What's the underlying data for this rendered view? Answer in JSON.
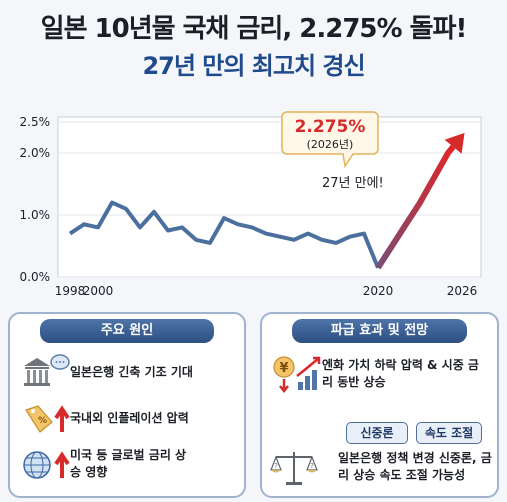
{
  "header": {
    "title": "일본 10년물 국채 금리, 2.275% 돌파!",
    "subtitle": "27년 만의 최고치 경신"
  },
  "chart_data": {
    "type": "line",
    "x": [
      1998,
      1999,
      2000,
      2001,
      2002,
      2003,
      2004,
      2005,
      2006,
      2007,
      2008,
      2009,
      2010,
      2011,
      2012,
      2013,
      2014,
      2015,
      2016,
      2017,
      2018,
      2019,
      2020,
      2021,
      2022,
      2023,
      2024,
      2025,
      2026
    ],
    "y": [
      0.7,
      0.85,
      0.8,
      1.2,
      1.1,
      0.8,
      1.05,
      0.75,
      0.8,
      0.6,
      0.55,
      0.95,
      0.85,
      0.8,
      0.7,
      0.65,
      0.6,
      0.7,
      0.6,
      0.55,
      0.65,
      0.7,
      0.15,
      0.5,
      0.85,
      1.2,
      1.6,
      2.0,
      2.275
    ],
    "x_ticks": [
      "1998",
      "2000",
      "2020",
      "2026"
    ],
    "y_ticks": [
      "0.0%",
      "1.0%",
      "2.0%",
      "2.5%"
    ],
    "ylim": [
      0,
      2.5
    ],
    "grid": true,
    "annotations": {
      "peak_value": "2.275%",
      "peak_year": "(2026년)",
      "note": "27년 만에!"
    },
    "colors": {
      "line": "#4b6f9e",
      "rise": "#d62b2b"
    }
  },
  "left_panel": {
    "title": "주요 원인",
    "items": [
      {
        "text": "일본은행 긴축 기조 기대",
        "icon": "bank-speech-icon"
      },
      {
        "text": "국내외 인플레이션 압력",
        "icon": "price-tag-up-icon"
      },
      {
        "text": "미국 등 글로벌 금리 상승 영향",
        "icon": "globe-up-icon"
      }
    ]
  },
  "right_panel": {
    "title": "파급 효과 및 전망",
    "items": [
      {
        "text": "엔화 가치 하락 압력 & 시중 금리 동반 상승",
        "icon": "yen-bar-chart-icon"
      },
      {
        "text": "일본은행 정책 변경 신중론, 금리 상승 속도 조절 가능성",
        "icon": "balance-scale-icon"
      }
    ],
    "tags": [
      "신중론",
      "속도 조절"
    ]
  }
}
